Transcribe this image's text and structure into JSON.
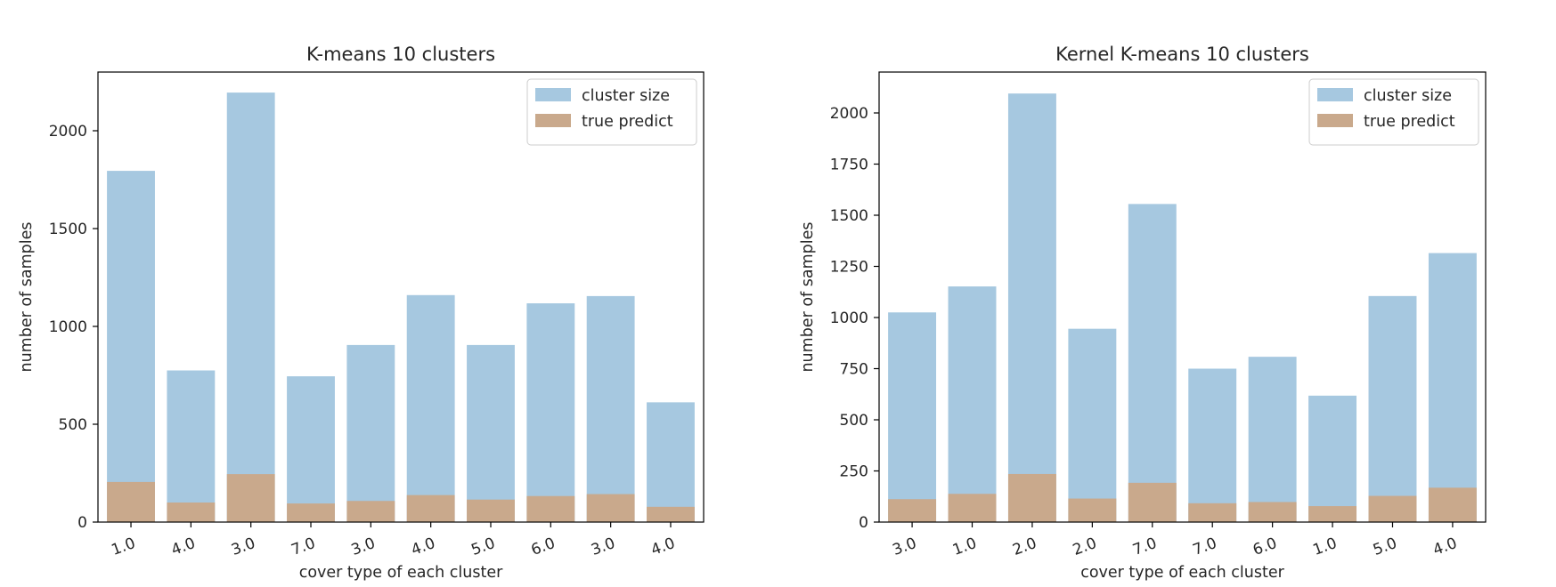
{
  "chart_data": [
    {
      "type": "bar",
      "title": "K-means 10 clusters",
      "xlabel": "cover type of each cluster",
      "ylabel": "number of samples",
      "categories": [
        "1.0",
        "4.0",
        "3.0",
        "7.0",
        "3.0",
        "4.0",
        "5.0",
        "6.0",
        "3.0",
        "4.0"
      ],
      "ylim": [
        0,
        2300
      ],
      "yticks": [
        0,
        500,
        1000,
        1500,
        2000
      ],
      "series": [
        {
          "name": "cluster size",
          "color": "#a6c8e0",
          "values": [
            1795,
            775,
            2195,
            745,
            905,
            1160,
            905,
            1118,
            1155,
            612
          ]
        },
        {
          "name": "true predict",
          "color": "#c9a98c",
          "values": [
            205,
            100,
            245,
            95,
            108,
            138,
            115,
            133,
            143,
            78
          ]
        }
      ],
      "legend": "top-right",
      "grid": false
    },
    {
      "type": "bar",
      "title": "Kernel K-means 10 clusters",
      "xlabel": "cover type of each cluster",
      "ylabel": "number of samples",
      "categories": [
        "3.0",
        "1.0",
        "2.0",
        "2.0",
        "7.0",
        "7.0",
        "6.0",
        "1.0",
        "5.0",
        "4.0"
      ],
      "ylim": [
        0,
        2200
      ],
      "yticks": [
        0,
        250,
        500,
        750,
        1000,
        1250,
        1500,
        1750,
        2000
      ],
      "series": [
        {
          "name": "cluster size",
          "color": "#a6c8e0",
          "values": [
            1025,
            1152,
            2095,
            945,
            1555,
            750,
            808,
            618,
            1105,
            1315
          ]
        },
        {
          "name": "true predict",
          "color": "#c9a98c",
          "values": [
            112,
            138,
            235,
            115,
            192,
            92,
            98,
            78,
            128,
            168
          ]
        }
      ],
      "legend": "top-right",
      "grid": false
    }
  ]
}
